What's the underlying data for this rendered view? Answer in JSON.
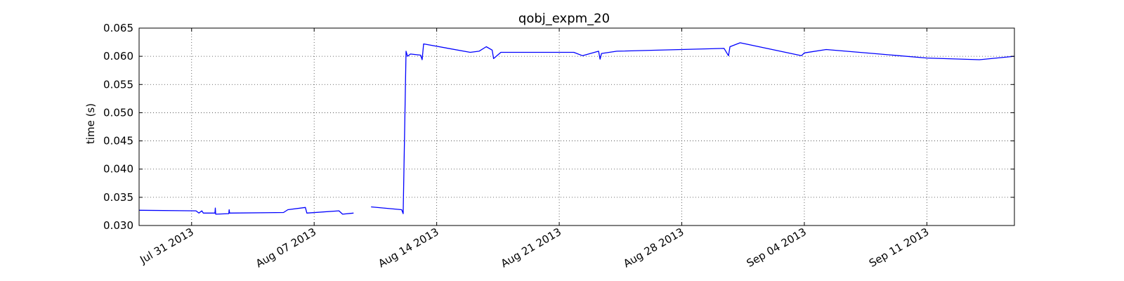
{
  "chart_data": {
    "type": "line",
    "title": "qobj_expm_20",
    "xlabel": "",
    "ylabel": "time (s)",
    "xlim": [
      "2013-07-28",
      "2013-09-16"
    ],
    "ylim": [
      0.03,
      0.065
    ],
    "yticks": [
      0.03,
      0.035,
      0.04,
      0.045,
      0.05,
      0.055,
      0.06,
      0.065
    ],
    "ytick_labels": [
      "0.030",
      "0.035",
      "0.040",
      "0.045",
      "0.050",
      "0.055",
      "0.060",
      "0.065"
    ],
    "xticks": [
      "2013-07-31",
      "2013-08-07",
      "2013-08-14",
      "2013-08-21",
      "2013-08-28",
      "2013-09-04",
      "2013-09-11"
    ],
    "xtick_labels": [
      "Jul 31 2013",
      "Aug 07 2013",
      "Aug 14 2013",
      "Aug 21 2013",
      "Aug 28 2013",
      "Sep 04 2013",
      "Sep 11 2013"
    ],
    "grid": true,
    "line_color": "#0000ff",
    "series": [
      {
        "segments": [
          [
            [
              "2013-07-28 00:00",
              0.0327
            ],
            [
              "2013-07-31 06:00",
              0.0326
            ],
            [
              "2013-07-31 10:00",
              0.0322
            ],
            [
              "2013-07-31 14:00",
              0.0326
            ],
            [
              "2013-07-31 16:00",
              0.0322
            ],
            [
              "2013-08-01 08:00",
              0.0322
            ],
            [
              "2013-08-01 08:30",
              0.0331
            ],
            [
              "2013-08-01 09:00",
              0.032
            ],
            [
              "2013-08-02 03:00",
              0.0321
            ],
            [
              "2013-08-02 03:30",
              0.0328
            ],
            [
              "2013-08-02 04:00",
              0.0322
            ],
            [
              "2013-08-05 06:00",
              0.0323
            ],
            [
              "2013-08-05 12:00",
              0.0328
            ],
            [
              "2013-08-06 12:00",
              0.0332
            ],
            [
              "2013-08-06 14:00",
              0.0322
            ],
            [
              "2013-08-08 10:00",
              0.0326
            ],
            [
              "2013-08-08 15:00",
              0.032
            ],
            [
              "2013-08-09 06:00",
              0.0322
            ]
          ],
          [
            [
              "2013-08-10 06:00",
              0.0333
            ],
            [
              "2013-08-12 00:00",
              0.0328
            ],
            [
              "2013-08-12 02:00",
              0.0321
            ],
            [
              "2013-08-12 06:00",
              0.0609
            ],
            [
              "2013-08-12 08:00",
              0.06
            ],
            [
              "2013-08-12 12:00",
              0.0604
            ],
            [
              "2013-08-13 02:00",
              0.0602
            ],
            [
              "2013-08-13 04:00",
              0.0594
            ],
            [
              "2013-08-13 06:00",
              0.0622
            ],
            [
              "2013-08-15 22:00",
              0.0607
            ],
            [
              "2013-08-16 10:00",
              0.0609
            ],
            [
              "2013-08-16 20:00",
              0.0617
            ],
            [
              "2013-08-17 04:00",
              0.0611
            ],
            [
              "2013-08-17 06:00",
              0.0596
            ],
            [
              "2013-08-17 16:00",
              0.0607
            ],
            [
              "2013-08-21 20:00",
              0.0607
            ],
            [
              "2013-08-22 08:00",
              0.0601
            ],
            [
              "2013-08-23 06:00",
              0.0609
            ],
            [
              "2013-08-23 08:00",
              0.0595
            ],
            [
              "2013-08-23 10:00",
              0.0605
            ],
            [
              "2013-08-24 07:00",
              0.0609
            ],
            [
              "2013-08-30 10:00",
              0.0614
            ],
            [
              "2013-08-30 16:00",
              0.0601
            ],
            [
              "2013-08-30 18:00",
              0.0617
            ],
            [
              "2013-08-31 08:00",
              0.0624
            ],
            [
              "2013-09-03 20:00",
              0.0601
            ],
            [
              "2013-09-04 00:00",
              0.0606
            ],
            [
              "2013-09-05 06:00",
              0.0612
            ],
            [
              "2013-09-11 00:00",
              0.0597
            ],
            [
              "2013-09-14 00:00",
              0.0594
            ],
            [
              "2013-09-16 00:00",
              0.06
            ]
          ]
        ]
      }
    ]
  }
}
